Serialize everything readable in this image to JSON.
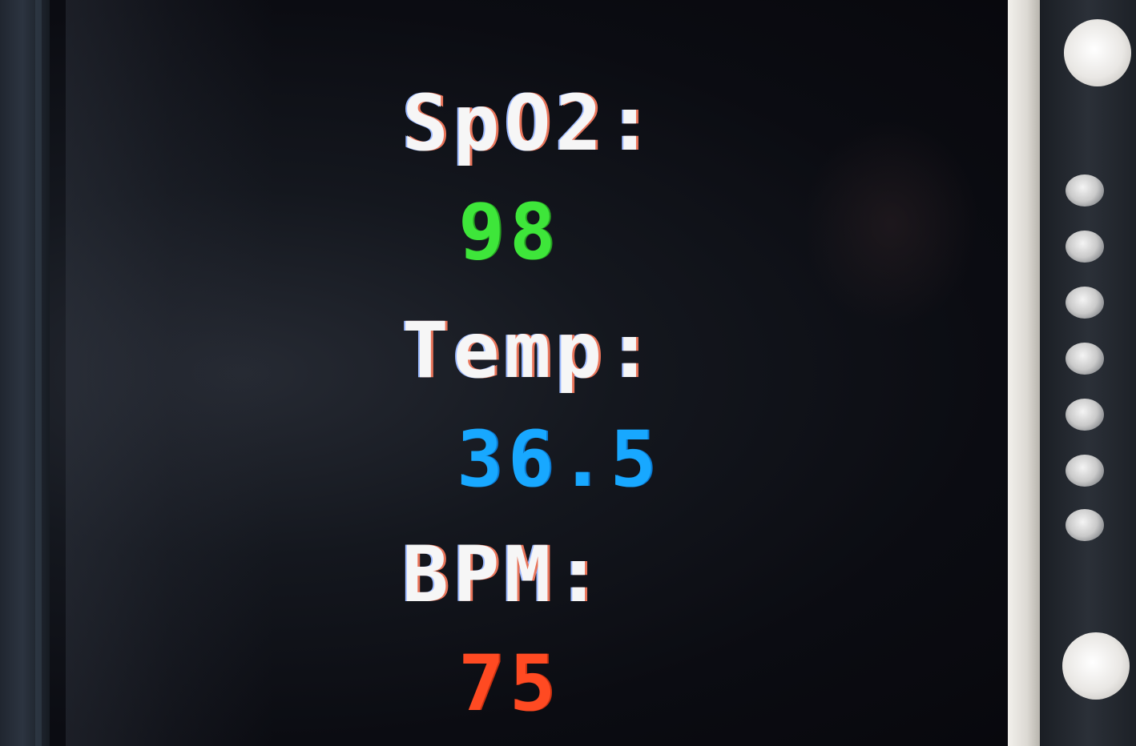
{
  "display": {
    "spo2": {
      "label": "SpO2:",
      "value": "98",
      "color": "#3ee63a"
    },
    "temp": {
      "label": "Temp:",
      "value": "36.5",
      "color": "#18a8ff"
    },
    "bpm": {
      "label": "BPM:",
      "value": "75",
      "color": "#ff4a22"
    }
  }
}
